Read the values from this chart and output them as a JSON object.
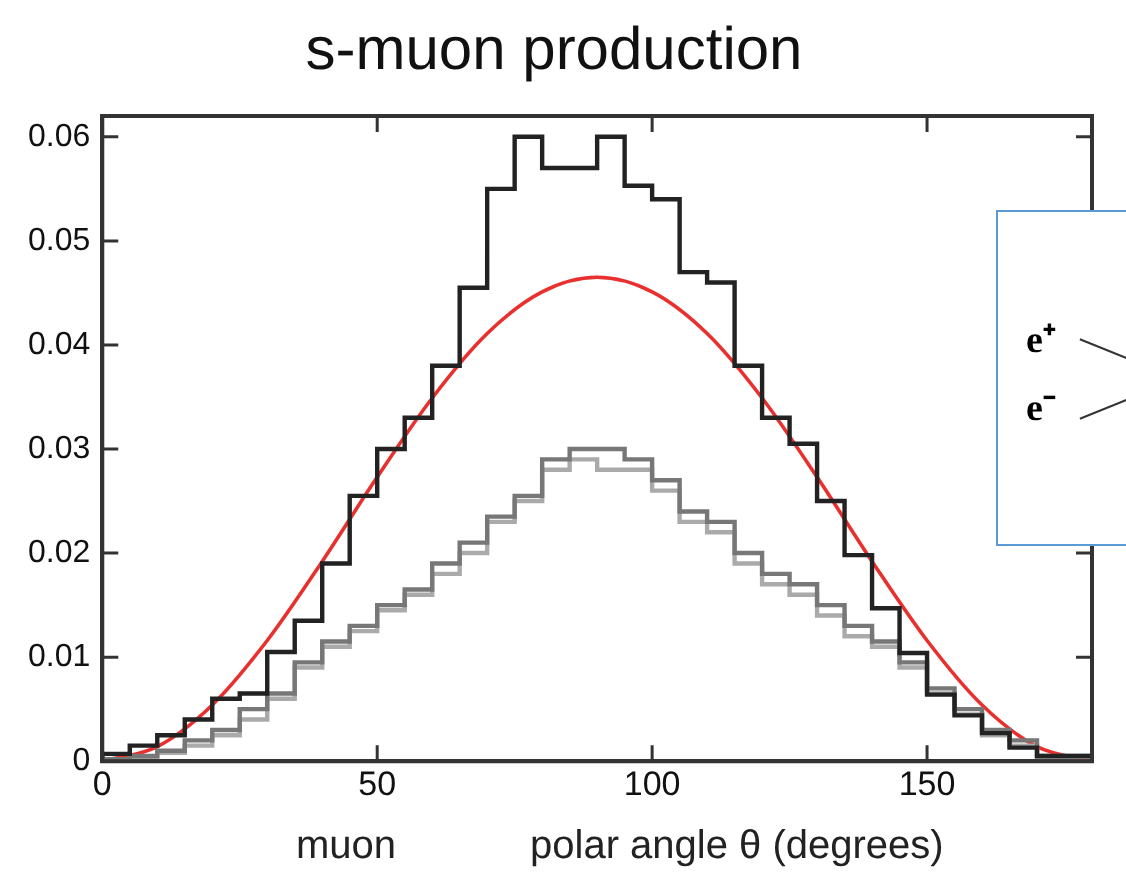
{
  "chart_data": {
    "type": "step",
    "title": "s-muon production",
    "xlabel": "polar angle θ (degrees)",
    "annotations": [
      "muon",
      "e⁺",
      "e⁻"
    ],
    "x": [
      0,
      5,
      10,
      15,
      20,
      25,
      30,
      35,
      40,
      45,
      50,
      55,
      60,
      65,
      70,
      75,
      80,
      85,
      90,
      95,
      100,
      105,
      110,
      115,
      120,
      125,
      130,
      135,
      140,
      145,
      150,
      155,
      160,
      165,
      170,
      175,
      180
    ],
    "series": [
      {
        "color": "#222222",
        "values": [
          0.0003,
          0.0007,
          0.0015,
          0.0025,
          0.004,
          0.006,
          0.0065,
          0.0105,
          0.0135,
          0.019,
          0.0255,
          0.03,
          0.033,
          0.038,
          0.0455,
          0.055,
          0.06,
          0.057,
          0.057,
          0.06,
          0.0553,
          0.054,
          0.047,
          0.046,
          0.038,
          0.033,
          0.0305,
          0.025,
          0.0198,
          0.0147,
          0.0104,
          0.0064,
          0.0044,
          0.0027,
          0.0013,
          0.0005,
          0.0005
        ]
      },
      {
        "color": "#777777",
        "values": [
          0,
          0.0002,
          0.0005,
          0.001,
          0.002,
          0.003,
          0.005,
          0.0065,
          0.0095,
          0.0115,
          0.013,
          0.015,
          0.0165,
          0.019,
          0.021,
          0.0235,
          0.0255,
          0.029,
          0.03,
          0.03,
          0.029,
          0.027,
          0.024,
          0.023,
          0.02,
          0.018,
          0.017,
          0.015,
          0.013,
          0.0115,
          0.0095,
          0.007,
          0.005,
          0.003,
          0.002,
          0.0005,
          0.0005
        ]
      },
      {
        "color": "#aaaaaa",
        "values": [
          0,
          0.0002,
          0.0004,
          0.0008,
          0.0015,
          0.0025,
          0.004,
          0.006,
          0.009,
          0.011,
          0.0125,
          0.0145,
          0.016,
          0.018,
          0.02,
          0.023,
          0.025,
          0.028,
          0.029,
          0.028,
          0.028,
          0.026,
          0.023,
          0.022,
          0.019,
          0.017,
          0.016,
          0.014,
          0.012,
          0.011,
          0.009,
          0.0065,
          0.0045,
          0.0025,
          0.0015,
          0.0004,
          0.0004
        ]
      },
      {
        "type": "line",
        "color": "#e8312f",
        "x": [
          0,
          10,
          20,
          30,
          40,
          50,
          60,
          70,
          80,
          90,
          100,
          110,
          120,
          130,
          140,
          150,
          160,
          170,
          180
        ],
        "values": [
          0,
          0.0014,
          0.0054,
          0.0116,
          0.0192,
          0.0273,
          0.0349,
          0.0411,
          0.0451,
          0.0465,
          0.0451,
          0.0411,
          0.0349,
          0.0273,
          0.0192,
          0.0116,
          0.0054,
          0.0014,
          0
        ]
      }
    ],
    "xlim": [
      0,
      180
    ],
    "xticks": [
      0,
      50,
      100,
      150
    ],
    "ylim": [
      0,
      0.062
    ],
    "yticks": [
      0,
      0.01,
      0.02,
      0.03,
      0.04,
      0.05,
      0.06
    ],
    "grid": false,
    "legend": false
  }
}
